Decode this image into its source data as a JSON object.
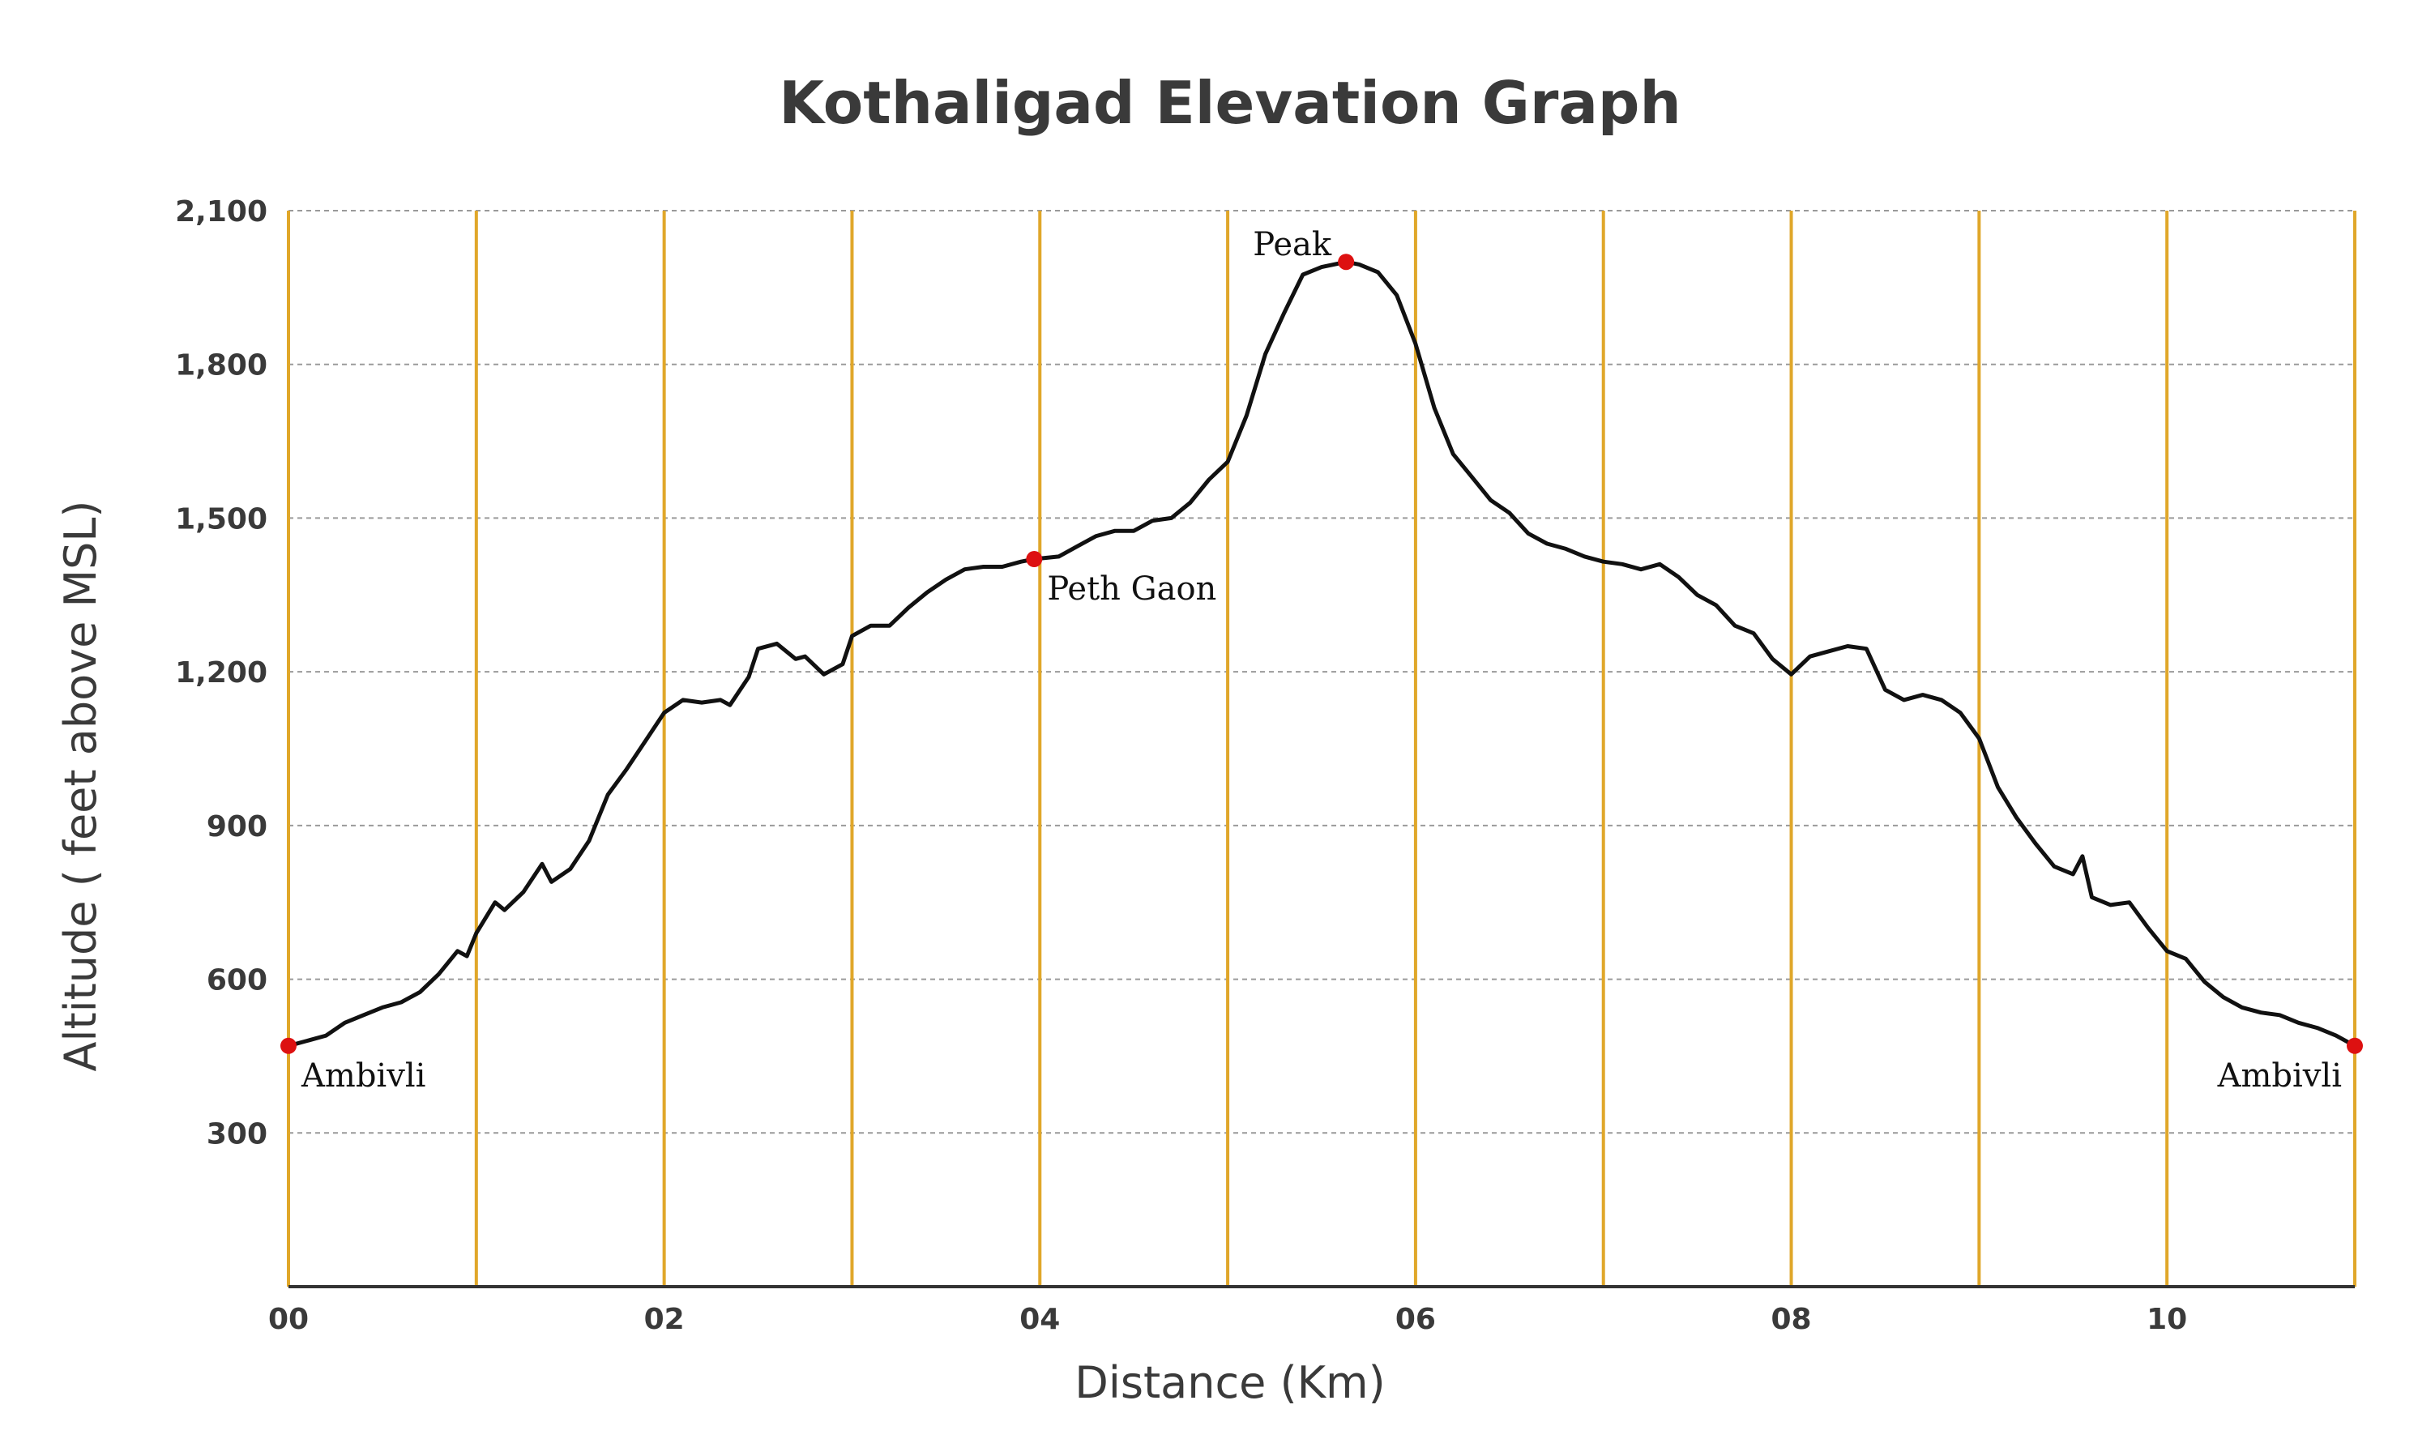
{
  "chart_data": {
    "type": "line",
    "title": "Kothaligad Elevation Graph",
    "xlabel": "Distance (Km)",
    "ylabel": "Altitude ( feet above MSL)",
    "xlim": [
      0,
      11
    ],
    "ylim": [
      0,
      2100
    ],
    "x_ticks": [
      0,
      2,
      4,
      6,
      8,
      10
    ],
    "x_tick_labels": [
      "00",
      "02",
      "04",
      "06",
      "08",
      "10"
    ],
    "x_gridlines": [
      0,
      1,
      2,
      3,
      4,
      5,
      6,
      7,
      8,
      9,
      10,
      11
    ],
    "y_ticks": [
      300,
      600,
      900,
      1200,
      1500,
      1800,
      2100
    ],
    "y_tick_labels": [
      "300",
      "600",
      "900",
      "1,200",
      "1,500",
      "1,800",
      "2,100"
    ],
    "y_gridlines": [
      300,
      600,
      900,
      1200,
      1500,
      1800,
      2100
    ],
    "colors": {
      "line": "#111111",
      "vgrid": "#e0a72a",
      "hgrid": "#9a9a9a",
      "axis": "#333333",
      "marker": "#dd1111"
    },
    "series": [
      {
        "name": "Elevation",
        "points": [
          [
            0.0,
            470
          ],
          [
            0.1,
            480
          ],
          [
            0.2,
            490
          ],
          [
            0.3,
            515
          ],
          [
            0.4,
            530
          ],
          [
            0.5,
            545
          ],
          [
            0.6,
            555
          ],
          [
            0.7,
            575
          ],
          [
            0.8,
            610
          ],
          [
            0.9,
            655
          ],
          [
            0.95,
            645
          ],
          [
            1.0,
            690
          ],
          [
            1.1,
            750
          ],
          [
            1.15,
            735
          ],
          [
            1.25,
            770
          ],
          [
            1.35,
            825
          ],
          [
            1.4,
            790
          ],
          [
            1.5,
            815
          ],
          [
            1.6,
            870
          ],
          [
            1.7,
            960
          ],
          [
            1.8,
            1010
          ],
          [
            1.9,
            1065
          ],
          [
            2.0,
            1120
          ],
          [
            2.1,
            1145
          ],
          [
            2.2,
            1140
          ],
          [
            2.3,
            1145
          ],
          [
            2.35,
            1135
          ],
          [
            2.45,
            1190
          ],
          [
            2.5,
            1245
          ],
          [
            2.6,
            1255
          ],
          [
            2.7,
            1225
          ],
          [
            2.75,
            1230
          ],
          [
            2.85,
            1195
          ],
          [
            2.95,
            1215
          ],
          [
            3.0,
            1270
          ],
          [
            3.1,
            1290
          ],
          [
            3.2,
            1290
          ],
          [
            3.3,
            1325
          ],
          [
            3.4,
            1355
          ],
          [
            3.5,
            1380
          ],
          [
            3.6,
            1400
          ],
          [
            3.7,
            1405
          ],
          [
            3.8,
            1405
          ],
          [
            3.9,
            1415
          ],
          [
            3.97,
            1420
          ],
          [
            4.1,
            1425
          ],
          [
            4.2,
            1445
          ],
          [
            4.3,
            1465
          ],
          [
            4.4,
            1475
          ],
          [
            4.5,
            1475
          ],
          [
            4.6,
            1495
          ],
          [
            4.7,
            1500
          ],
          [
            4.8,
            1530
          ],
          [
            4.9,
            1575
          ],
          [
            5.0,
            1610
          ],
          [
            5.1,
            1700
          ],
          [
            5.2,
            1820
          ],
          [
            5.3,
            1900
          ],
          [
            5.4,
            1975
          ],
          [
            5.5,
            1990
          ],
          [
            5.63,
            2000
          ],
          [
            5.7,
            1995
          ],
          [
            5.8,
            1980
          ],
          [
            5.9,
            1935
          ],
          [
            6.0,
            1840
          ],
          [
            6.1,
            1715
          ],
          [
            6.2,
            1625
          ],
          [
            6.3,
            1580
          ],
          [
            6.4,
            1535
          ],
          [
            6.5,
            1510
          ],
          [
            6.6,
            1470
          ],
          [
            6.7,
            1450
          ],
          [
            6.8,
            1440
          ],
          [
            6.9,
            1425
          ],
          [
            7.0,
            1415
          ],
          [
            7.1,
            1410
          ],
          [
            7.2,
            1400
          ],
          [
            7.3,
            1410
          ],
          [
            7.4,
            1385
          ],
          [
            7.5,
            1350
          ],
          [
            7.6,
            1330
          ],
          [
            7.7,
            1290
          ],
          [
            7.8,
            1275
          ],
          [
            7.9,
            1225
          ],
          [
            8.0,
            1195
          ],
          [
            8.1,
            1230
          ],
          [
            8.2,
            1240
          ],
          [
            8.3,
            1250
          ],
          [
            8.4,
            1245
          ],
          [
            8.5,
            1165
          ],
          [
            8.6,
            1145
          ],
          [
            8.7,
            1155
          ],
          [
            8.8,
            1145
          ],
          [
            8.9,
            1120
          ],
          [
            9.0,
            1070
          ],
          [
            9.1,
            975
          ],
          [
            9.2,
            915
          ],
          [
            9.3,
            865
          ],
          [
            9.4,
            820
          ],
          [
            9.5,
            805
          ],
          [
            9.55,
            840
          ],
          [
            9.6,
            760
          ],
          [
            9.7,
            745
          ],
          [
            9.8,
            750
          ],
          [
            9.9,
            700
          ],
          [
            10.0,
            655
          ],
          [
            10.1,
            640
          ],
          [
            10.2,
            595
          ],
          [
            10.3,
            565
          ],
          [
            10.4,
            545
          ],
          [
            10.5,
            535
          ],
          [
            10.6,
            530
          ],
          [
            10.7,
            515
          ],
          [
            10.8,
            505
          ],
          [
            10.9,
            490
          ],
          [
            11.0,
            470
          ]
        ]
      }
    ],
    "annotations": [
      {
        "label": "Ambivli",
        "x": 0.0,
        "y": 470,
        "label_position": "below-right"
      },
      {
        "label": "Peth Gaon",
        "x": 3.97,
        "y": 1420,
        "label_position": "below-right"
      },
      {
        "label": "Peak",
        "x": 5.63,
        "y": 2000,
        "label_position": "above-left"
      },
      {
        "label": "Ambivli",
        "x": 11.0,
        "y": 470,
        "label_position": "below-left"
      }
    ]
  }
}
